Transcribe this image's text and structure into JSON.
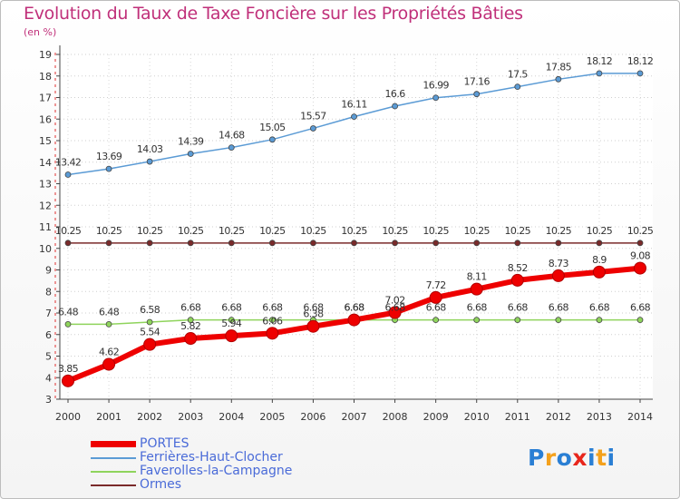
{
  "chart_data": {
    "type": "line",
    "title": "Evolution du Taux de Taxe Foncière sur les Propriétés Bâties",
    "ylabel": "(en %)",
    "xlabel": "",
    "categories": [
      "2000",
      "2001",
      "2002",
      "2003",
      "2004",
      "2005",
      "2006",
      "2007",
      "2008",
      "2009",
      "2010",
      "2011",
      "2012",
      "2013",
      "2014"
    ],
    "ylim": [
      3,
      19
    ],
    "yticks": [
      3,
      4,
      5,
      6,
      7,
      8,
      9,
      10,
      11,
      12,
      13,
      14,
      15,
      16,
      17,
      18,
      19
    ],
    "grid": true,
    "series": [
      {
        "name": "PORTES",
        "color": "#ee0000",
        "values": [
          3.85,
          4.62,
          5.54,
          5.82,
          5.94,
          6.06,
          6.38,
          6.68,
          7.02,
          7.72,
          8.11,
          8.52,
          8.73,
          8.9,
          9.08
        ],
        "labels": [
          "3.85",
          "4.62",
          "5.54",
          "5.82",
          "5.94",
          "6.06",
          "6.38",
          "6.68",
          "7.02",
          "7.72",
          "8.11",
          "8.52",
          "8.73",
          "8.9",
          "9.08"
        ]
      },
      {
        "name": "Ferrières-Haut-Clocher",
        "color": "#5b9bd5",
        "values": [
          13.42,
          13.69,
          14.03,
          14.39,
          14.68,
          15.05,
          15.57,
          16.11,
          16.6,
          16.99,
          17.16,
          17.5,
          17.85,
          18.12,
          18.12
        ],
        "labels": [
          "13.42",
          "13.69",
          "14.03",
          "14.39",
          "14.68",
          "15.05",
          "15.57",
          "16.11",
          "16.6",
          "16.99",
          "17.16",
          "17.5",
          "17.85",
          "18.12",
          "18.12"
        ]
      },
      {
        "name": "Faverolles-la-Campagne",
        "color": "#8fd45c",
        "values": [
          6.48,
          6.48,
          6.58,
          6.68,
          6.68,
          6.68,
          6.68,
          6.68,
          6.68,
          6.68,
          6.68,
          6.68,
          6.68,
          6.68,
          6.68
        ],
        "labels": [
          "6.48",
          "6.48",
          "6.58",
          "6.68",
          "6.68",
          "6.68",
          "6.68",
          "6.68",
          "6.68",
          "6.68",
          "6.68",
          "6.68",
          "6.68",
          "6.68",
          "6.68"
        ]
      },
      {
        "name": "Ormes",
        "color": "#7a2a2a",
        "values": [
          10.25,
          10.25,
          10.25,
          10.25,
          10.25,
          10.25,
          10.25,
          10.25,
          10.25,
          10.25,
          10.25,
          10.25,
          10.25,
          10.25,
          10.25
        ],
        "labels": [
          "10.25",
          "10.25",
          "10.25",
          "10.25",
          "10.25",
          "10.25",
          "10.25",
          "10.25",
          "10.25",
          "10.25",
          "10.25",
          "10.25",
          "10.25",
          "10.25",
          "10.25"
        ]
      }
    ]
  },
  "branding": {
    "logo_letters": [
      "P",
      "r",
      "o",
      "x",
      "i",
      "t",
      "i"
    ],
    "logo_colors": [
      "#2a7fd4",
      "#f4a11c",
      "#2a7fd4",
      "#e8261c",
      "#2a7fd4",
      "#f4a11c",
      "#2a7fd4"
    ]
  }
}
